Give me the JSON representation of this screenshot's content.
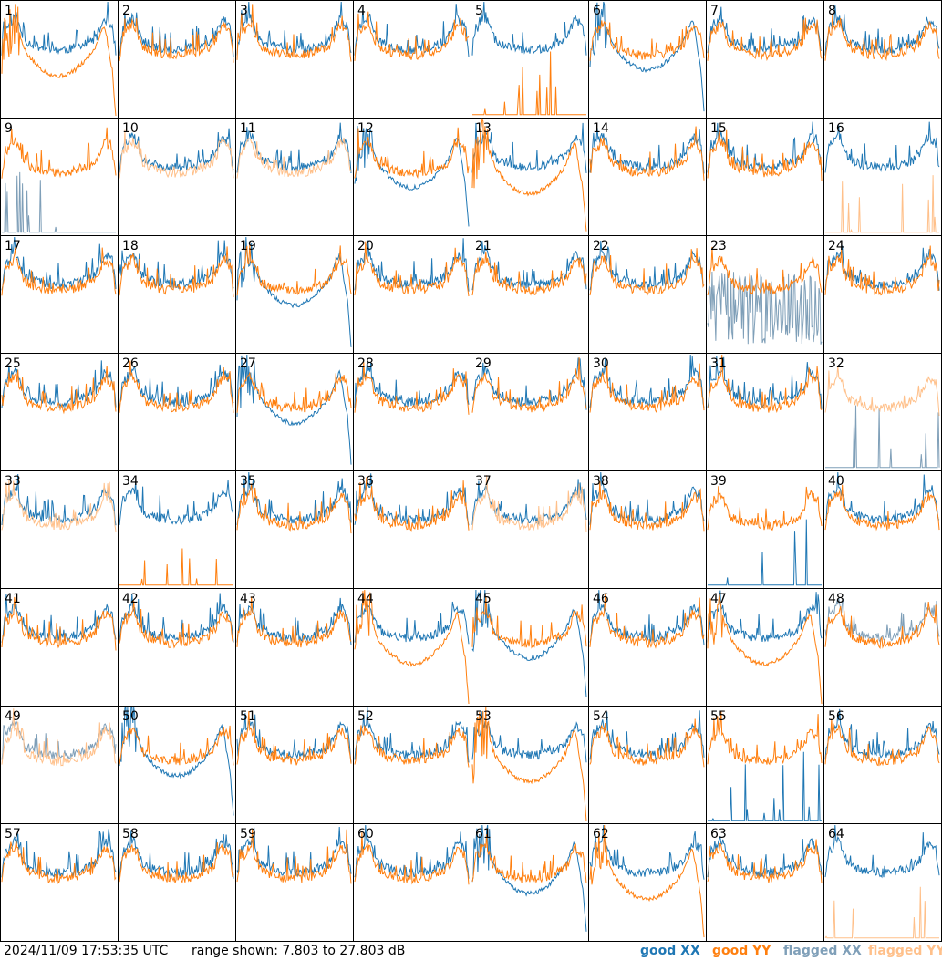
{
  "footer": {
    "timestamp": "2024/11/09 17:53:35 UTC",
    "range_text": "range shown: 7.803 to 27.803 dB"
  },
  "legend": {
    "good_xx": "good XX",
    "good_yy": "good YY",
    "flagged_xx": "flagged XX",
    "flagged_yy": "flagged YY"
  },
  "colors": {
    "good_xx": "#1f77b4",
    "good_yy": "#ff7f0e",
    "flagged_xx": "#7f9fb8",
    "flagged_yy": "#ffc08a",
    "border": "#000000"
  },
  "chart_data": {
    "type": "line",
    "layout": "8x8 small multiples",
    "ylim": [
      7.803,
      27.803
    ],
    "y_unit": "dB",
    "tiles": [
      {
        "label": "1",
        "xx": "good",
        "yy": "good",
        "xx_shape": "normal",
        "yy_shape": "dip"
      },
      {
        "label": "2",
        "xx": "good",
        "yy": "good",
        "xx_shape": "normal",
        "yy_shape": "normal"
      },
      {
        "label": "3",
        "xx": "good",
        "yy": "good",
        "xx_shape": "normal",
        "yy_shape": "normal"
      },
      {
        "label": "4",
        "xx": "good",
        "yy": "good",
        "xx_shape": "normal",
        "yy_shape": "normal"
      },
      {
        "label": "5",
        "xx": "good",
        "yy": "good",
        "xx_shape": "normal",
        "yy_shape": "flat"
      },
      {
        "label": "6",
        "xx": "good",
        "yy": "good",
        "xx_shape": "dip",
        "yy_shape": "normal"
      },
      {
        "label": "7",
        "xx": "good",
        "yy": "good",
        "xx_shape": "normal",
        "yy_shape": "normal"
      },
      {
        "label": "8",
        "xx": "good",
        "yy": "good",
        "xx_shape": "normal",
        "yy_shape": "normal"
      },
      {
        "label": "9",
        "xx": "flagged",
        "yy": "good",
        "xx_shape": "flat",
        "yy_shape": "normal"
      },
      {
        "label": "10",
        "xx": "good",
        "yy": "flagged",
        "xx_shape": "normal",
        "yy_shape": "normal"
      },
      {
        "label": "11",
        "xx": "good",
        "yy": "flagged",
        "xx_shape": "normal",
        "yy_shape": "normal"
      },
      {
        "label": "12",
        "xx": "good",
        "yy": "good",
        "xx_shape": "dip",
        "yy_shape": "normal"
      },
      {
        "label": "13",
        "xx": "good",
        "yy": "good",
        "xx_shape": "normal",
        "yy_shape": "dip"
      },
      {
        "label": "14",
        "xx": "good",
        "yy": "good",
        "xx_shape": "normal",
        "yy_shape": "normal"
      },
      {
        "label": "15",
        "xx": "good",
        "yy": "good",
        "xx_shape": "normal",
        "yy_shape": "normal"
      },
      {
        "label": "16",
        "xx": "good",
        "yy": "flagged",
        "xx_shape": "normal",
        "yy_shape": "flat"
      },
      {
        "label": "17",
        "xx": "good",
        "yy": "good",
        "xx_shape": "normal",
        "yy_shape": "normal"
      },
      {
        "label": "18",
        "xx": "good",
        "yy": "good",
        "xx_shape": "normal",
        "yy_shape": "normal"
      },
      {
        "label": "19",
        "xx": "good",
        "yy": "good",
        "xx_shape": "dip",
        "yy_shape": "normal"
      },
      {
        "label": "20",
        "xx": "good",
        "yy": "good",
        "xx_shape": "normal",
        "yy_shape": "normal"
      },
      {
        "label": "21",
        "xx": "good",
        "yy": "good",
        "xx_shape": "normal",
        "yy_shape": "normal"
      },
      {
        "label": "22",
        "xx": "good",
        "yy": "good",
        "xx_shape": "normal",
        "yy_shape": "normal"
      },
      {
        "label": "23",
        "xx": "flagged",
        "yy": "good",
        "xx_shape": "noise",
        "yy_shape": "normal"
      },
      {
        "label": "24",
        "xx": "good",
        "yy": "good",
        "xx_shape": "normal",
        "yy_shape": "normal"
      },
      {
        "label": "25",
        "xx": "good",
        "yy": "good",
        "xx_shape": "normal",
        "yy_shape": "normal"
      },
      {
        "label": "26",
        "xx": "good",
        "yy": "good",
        "xx_shape": "normal",
        "yy_shape": "normal"
      },
      {
        "label": "27",
        "xx": "good",
        "yy": "good",
        "xx_shape": "dip",
        "yy_shape": "normal"
      },
      {
        "label": "28",
        "xx": "good",
        "yy": "good",
        "xx_shape": "normal",
        "yy_shape": "normal"
      },
      {
        "label": "29",
        "xx": "good",
        "yy": "good",
        "xx_shape": "normal",
        "yy_shape": "normal"
      },
      {
        "label": "30",
        "xx": "good",
        "yy": "good",
        "xx_shape": "normal",
        "yy_shape": "normal"
      },
      {
        "label": "31",
        "xx": "good",
        "yy": "good",
        "xx_shape": "normal",
        "yy_shape": "normal"
      },
      {
        "label": "32",
        "xx": "flagged",
        "yy": "flagged",
        "xx_shape": "flat",
        "yy_shape": "normal"
      },
      {
        "label": "33",
        "xx": "good",
        "yy": "flagged",
        "xx_shape": "normal",
        "yy_shape": "normal"
      },
      {
        "label": "34",
        "xx": "good",
        "yy": "good",
        "xx_shape": "normal",
        "yy_shape": "flat"
      },
      {
        "label": "35",
        "xx": "good",
        "yy": "good",
        "xx_shape": "normal",
        "yy_shape": "normal"
      },
      {
        "label": "36",
        "xx": "good",
        "yy": "good",
        "xx_shape": "normal",
        "yy_shape": "normal"
      },
      {
        "label": "37",
        "xx": "good",
        "yy": "flagged",
        "xx_shape": "normal",
        "yy_shape": "normal"
      },
      {
        "label": "38",
        "xx": "good",
        "yy": "good",
        "xx_shape": "normal",
        "yy_shape": "normal"
      },
      {
        "label": "39",
        "xx": "good",
        "yy": "good",
        "xx_shape": "flat",
        "yy_shape": "normal"
      },
      {
        "label": "40",
        "xx": "good",
        "yy": "good",
        "xx_shape": "normal",
        "yy_shape": "normal"
      },
      {
        "label": "41",
        "xx": "good",
        "yy": "good",
        "xx_shape": "normal",
        "yy_shape": "normal"
      },
      {
        "label": "42",
        "xx": "good",
        "yy": "good",
        "xx_shape": "normal",
        "yy_shape": "normal"
      },
      {
        "label": "43",
        "xx": "good",
        "yy": "good",
        "xx_shape": "normal",
        "yy_shape": "normal"
      },
      {
        "label": "44",
        "xx": "good",
        "yy": "good",
        "xx_shape": "normal",
        "yy_shape": "dip"
      },
      {
        "label": "45",
        "xx": "good",
        "yy": "good",
        "xx_shape": "dip",
        "yy_shape": "normal"
      },
      {
        "label": "46",
        "xx": "good",
        "yy": "good",
        "xx_shape": "normal",
        "yy_shape": "normal"
      },
      {
        "label": "47",
        "xx": "good",
        "yy": "good",
        "xx_shape": "normal",
        "yy_shape": "dip"
      },
      {
        "label": "48",
        "xx": "flagged",
        "yy": "good",
        "xx_shape": "normal",
        "yy_shape": "normal"
      },
      {
        "label": "49",
        "xx": "flagged",
        "yy": "flagged",
        "xx_shape": "normal",
        "yy_shape": "normal"
      },
      {
        "label": "50",
        "xx": "good",
        "yy": "good",
        "xx_shape": "dip",
        "yy_shape": "normal"
      },
      {
        "label": "51",
        "xx": "good",
        "yy": "good",
        "xx_shape": "normal",
        "yy_shape": "normal"
      },
      {
        "label": "52",
        "xx": "good",
        "yy": "good",
        "xx_shape": "normal",
        "yy_shape": "normal"
      },
      {
        "label": "53",
        "xx": "good",
        "yy": "good",
        "xx_shape": "normal",
        "yy_shape": "dip"
      },
      {
        "label": "54",
        "xx": "good",
        "yy": "good",
        "xx_shape": "normal",
        "yy_shape": "normal"
      },
      {
        "label": "55",
        "xx": "good",
        "yy": "good",
        "xx_shape": "flat",
        "yy_shape": "normal"
      },
      {
        "label": "56",
        "xx": "good",
        "yy": "good",
        "xx_shape": "normal",
        "yy_shape": "normal"
      },
      {
        "label": "57",
        "xx": "good",
        "yy": "good",
        "xx_shape": "normal",
        "yy_shape": "normal"
      },
      {
        "label": "58",
        "xx": "good",
        "yy": "good",
        "xx_shape": "normal",
        "yy_shape": "normal"
      },
      {
        "label": "59",
        "xx": "good",
        "yy": "good",
        "xx_shape": "normal",
        "yy_shape": "normal"
      },
      {
        "label": "60",
        "xx": "good",
        "yy": "good",
        "xx_shape": "normal",
        "yy_shape": "normal"
      },
      {
        "label": "61",
        "xx": "good",
        "yy": "good",
        "xx_shape": "dip",
        "yy_shape": "normal"
      },
      {
        "label": "62",
        "xx": "good",
        "yy": "good",
        "xx_shape": "normal",
        "yy_shape": "dip"
      },
      {
        "label": "63",
        "xx": "good",
        "yy": "good",
        "xx_shape": "normal",
        "yy_shape": "normal"
      },
      {
        "label": "64",
        "xx": "good",
        "yy": "flagged",
        "xx_shape": "normal",
        "yy_shape": "flat"
      }
    ]
  }
}
